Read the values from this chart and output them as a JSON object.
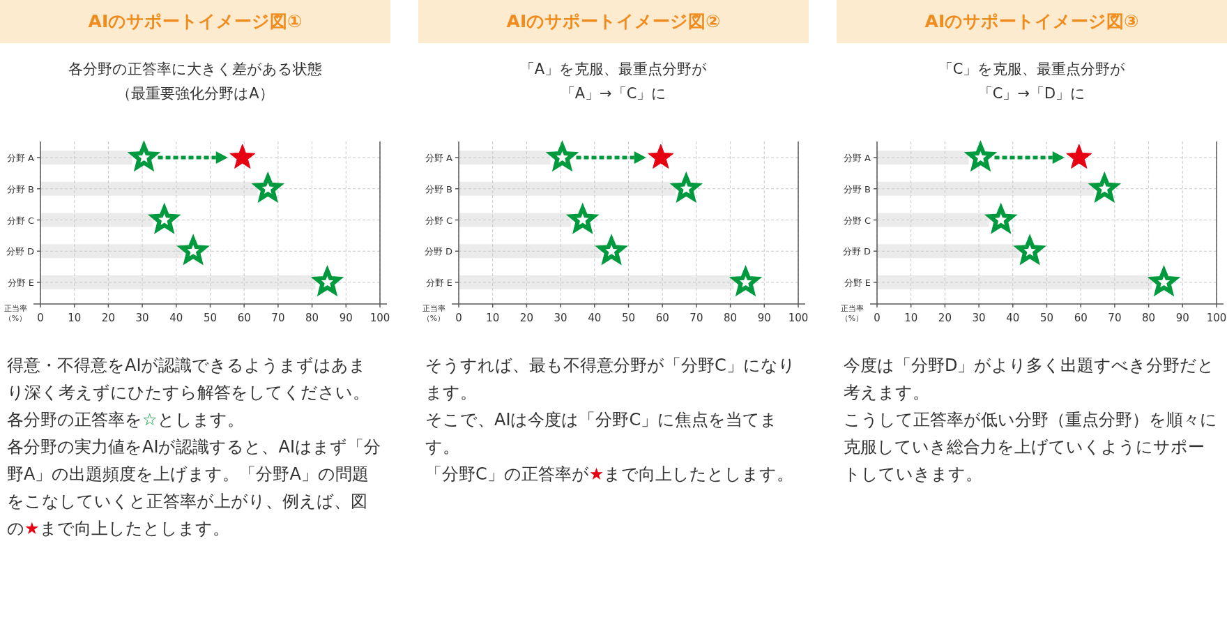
{
  "chart_data": [
    {
      "type": "scatter",
      "title": "AIのサポートイメージ図①",
      "subtitle": "各分野の正答率に大きく差がある状態（最重要強化分野はA）",
      "xlabel": "正当率（%）",
      "categories": [
        "分野 A",
        "分野 B",
        "分野 C",
        "分野 D",
        "分野 E"
      ],
      "orientation": "horizontal",
      "xlim": [
        0,
        100
      ],
      "xticks": [
        0,
        10,
        20,
        30,
        40,
        50,
        60,
        70,
        80,
        90,
        100
      ],
      "grid": true,
      "marker": "star",
      "series": [
        {
          "type": "bar",
          "color": "#ebebeb",
          "values": [
            27,
            64,
            33,
            42,
            81
          ]
        },
        {
          "color": "#009a3e",
          "values": [
            30.5,
            67,
            36.5,
            45,
            84.5
          ]
        },
        {
          "color": "#e60012",
          "values": [
            59.5,
            null,
            null,
            null,
            null
          ]
        }
      ],
      "annotations": [
        "得意・不得意をAIが認識できるようまずはあまり深く考えずにひたすら解答をしてください。",
        "各分野の正答率を☆とします。",
        "各分野の実力値をAIが認識すると、AIはまず「分野A」の出題頻度を上げます。「分野A」の問題をこなしていくと正答率が上がり、例えば、図の★まで向上したとします。"
      ]
    },
    {
      "type": "scatter",
      "title": "AIのサポートイメージ図②",
      "subtitle": "「A」を克服、最重点分野が「A」→「C」に",
      "xlabel": "正当率（%）",
      "categories": [
        "分野 A",
        "分野 B",
        "分野 C",
        "分野 D",
        "分野 E"
      ],
      "orientation": "horizontal",
      "xlim": [
        0,
        100
      ],
      "xticks": [
        0,
        10,
        20,
        30,
        40,
        50,
        60,
        70,
        80,
        90,
        100
      ],
      "grid": true,
      "marker": "star",
      "series": [
        {
          "type": "bar",
          "color": "#ebebeb",
          "values": [
            27,
            64,
            33,
            42,
            81
          ]
        },
        {
          "color": "#009a3e",
          "values": [
            30.5,
            67,
            36.5,
            45,
            84.5
          ]
        },
        {
          "color": "#e60012",
          "values": [
            59.5,
            null,
            null,
            null,
            null
          ]
        }
      ],
      "annotations": [
        "そうすれば、最も不得意分野が「分野C」になります。",
        "そこで、AIは今度は「分野C」に焦点を当てます。",
        "「分野C」の正答率が★まで向上したとします。"
      ]
    },
    {
      "type": "scatter",
      "title": "AIのサポートイメージ図③",
      "subtitle": "「C」を克服、最重点分野が「C」→「D」に",
      "xlabel": "正当率（%）",
      "categories": [
        "分野 A",
        "分野 B",
        "分野 C",
        "分野 D",
        "分野 E"
      ],
      "orientation": "horizontal",
      "xlim": [
        0,
        100
      ],
      "xticks": [
        0,
        10,
        20,
        30,
        40,
        50,
        60,
        70,
        80,
        90,
        100
      ],
      "grid": true,
      "marker": "star",
      "series": [
        {
          "type": "bar",
          "color": "#ebebeb",
          "values": [
            27,
            64,
            33,
            42,
            81
          ]
        },
        {
          "color": "#009a3e",
          "values": [
            30.5,
            67,
            36.5,
            45,
            84.5
          ]
        },
        {
          "color": "#e60012",
          "values": [
            59.5,
            null,
            null,
            null,
            null
          ]
        }
      ],
      "annotations": [
        "今度は「分野D」がより多く出題すべき分野だと考えます。",
        "こうして正答率が低い分野（重点分野）を順々に克服していき総合力を上げていくようにサポートしていきます。"
      ]
    }
  ]
}
